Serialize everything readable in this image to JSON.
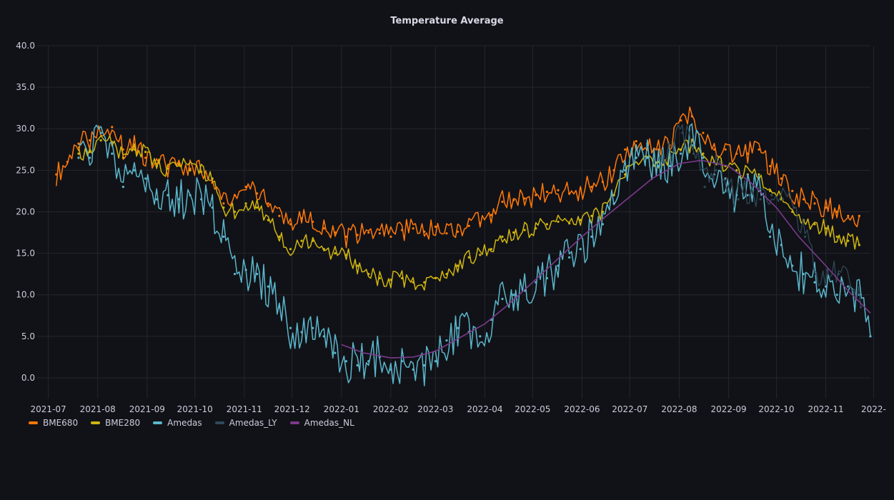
{
  "panel": {
    "title": "Temperature Average"
  },
  "chart_data": {
    "type": "line",
    "title": "Temperature Average",
    "ylim": [
      -2.5,
      40
    ],
    "yticks": [
      "40.0",
      "35.0",
      "30.0",
      "25.0",
      "20.0",
      "15.0",
      "10.0",
      "5.0",
      "0.0"
    ],
    "ytick_values": [
      40,
      35,
      30,
      25,
      20,
      15,
      10,
      5,
      0
    ],
    "xlim": [
      "2021-06-24",
      "2022-11-29"
    ],
    "xticks": [
      "2021-07",
      "2021-08",
      "2021-09",
      "2021-10",
      "2021-11",
      "2021-12",
      "2022-01",
      "2022-02",
      "2022-03",
      "2022-04",
      "2022-05",
      "2022-06",
      "2022-07",
      "2022-08",
      "2022-09",
      "2022-10",
      "2022-11",
      "2022-"
    ],
    "xtick_dates": [
      "2021-07-01",
      "2021-08-01",
      "2021-09-01",
      "2021-10-01",
      "2021-11-01",
      "2021-12-01",
      "2022-01-01",
      "2022-02-01",
      "2022-03-01",
      "2022-04-01",
      "2022-05-01",
      "2022-06-01",
      "2022-07-01",
      "2022-08-01",
      "2022-09-01",
      "2022-10-01",
      "2022-11-01",
      "2022-12-01"
    ],
    "grid": true,
    "legend_position": "bottom-left",
    "series": [
      {
        "name": "BME680",
        "color": "#ff780a",
        "x": [
          "2021-07-06",
          "2021-07-13",
          "2021-07-20",
          "2021-07-27",
          "2021-08-03",
          "2021-08-10",
          "2021-08-17",
          "2021-08-24",
          "2021-08-31",
          "2021-09-07",
          "2021-09-14",
          "2021-09-21",
          "2021-09-28",
          "2021-10-05",
          "2021-10-12",
          "2021-10-19",
          "2021-10-26",
          "2021-11-02",
          "2021-11-09",
          "2021-11-16",
          "2021-11-23",
          "2021-11-30",
          "2021-12-07",
          "2021-12-14",
          "2021-12-21",
          "2021-12-28",
          "2022-01-04",
          "2022-01-11",
          "2022-01-18",
          "2022-01-25",
          "2022-02-01",
          "2022-02-08",
          "2022-02-15",
          "2022-02-22",
          "2022-03-01",
          "2022-03-08",
          "2022-03-15",
          "2022-03-22",
          "2022-03-29",
          "2022-04-05",
          "2022-04-12",
          "2022-04-19",
          "2022-04-26",
          "2022-05-03",
          "2022-05-10",
          "2022-05-17",
          "2022-05-24",
          "2022-05-31",
          "2022-06-07",
          "2022-06-14",
          "2022-06-21",
          "2022-06-28",
          "2022-07-05",
          "2022-07-12",
          "2022-07-19",
          "2022-07-26",
          "2022-08-02",
          "2022-08-09",
          "2022-08-16",
          "2022-08-23",
          "2022-08-30",
          "2022-09-06",
          "2022-09-13",
          "2022-09-20",
          "2022-09-27",
          "2022-10-04",
          "2022-10-11",
          "2022-10-18",
          "2022-10-25",
          "2022-11-01",
          "2022-11-08",
          "2022-11-15",
          "2022-11-22"
        ],
        "values": [
          24.5,
          26.0,
          28.2,
          28.6,
          29.5,
          30.2,
          27.5,
          27.8,
          26.5,
          25.8,
          25.5,
          25.6,
          25.2,
          24.8,
          23.5,
          21.0,
          22.0,
          23.0,
          22.2,
          21.0,
          19.5,
          18.5,
          19.2,
          18.8,
          18.0,
          17.5,
          17.0,
          17.2,
          17.5,
          17.4,
          17.0,
          17.8,
          18.0,
          17.6,
          18.2,
          17.4,
          17.6,
          18.3,
          18.6,
          19.6,
          21.2,
          21.4,
          21.6,
          22.0,
          22.4,
          22.6,
          22.2,
          22.8,
          23.0,
          23.6,
          25.0,
          27.5,
          28.5,
          28.2,
          27.5,
          28.0,
          31.0,
          31.5,
          29.5,
          27.5,
          27.5,
          27.0,
          27.0,
          27.5,
          25.5,
          24.0,
          22.5,
          21.5,
          21.0,
          20.5,
          20.0,
          19.5,
          19.5
        ]
      },
      {
        "name": "BME280",
        "color": "#cfb50e",
        "x": [
          "2021-07-20",
          "2021-07-27",
          "2021-08-03",
          "2021-08-10",
          "2021-08-17",
          "2021-08-24",
          "2021-08-31",
          "2021-09-07",
          "2021-09-14",
          "2021-09-21",
          "2021-09-28",
          "2021-10-05",
          "2021-10-12",
          "2021-10-19",
          "2021-10-26",
          "2021-11-02",
          "2021-11-09",
          "2021-11-16",
          "2021-11-23",
          "2021-11-30",
          "2021-12-07",
          "2021-12-14",
          "2021-12-21",
          "2021-12-28",
          "2022-01-04",
          "2022-01-11",
          "2022-01-18",
          "2022-01-25",
          "2022-02-01",
          "2022-02-08",
          "2022-02-15",
          "2022-02-22",
          "2022-03-01",
          "2022-03-08",
          "2022-03-15",
          "2022-03-22",
          "2022-03-29",
          "2022-04-05",
          "2022-04-12",
          "2022-04-19",
          "2022-04-26",
          "2022-05-03",
          "2022-05-10",
          "2022-05-17",
          "2022-05-24",
          "2022-05-31",
          "2022-06-07",
          "2022-06-14",
          "2022-06-21",
          "2022-06-28",
          "2022-07-05",
          "2022-07-12",
          "2022-07-19",
          "2022-07-26",
          "2022-08-02",
          "2022-08-09",
          "2022-08-16",
          "2022-08-23",
          "2022-08-30",
          "2022-09-06",
          "2022-09-13",
          "2022-09-20",
          "2022-09-27",
          "2022-10-04",
          "2022-10-11",
          "2022-10-18",
          "2022-10-25",
          "2022-11-01",
          "2022-11-08",
          "2022-11-15",
          "2022-11-22"
        ],
        "values": [
          27.0,
          27.2,
          28.6,
          28.4,
          26.5,
          27.5,
          27.2,
          25.5,
          25.2,
          25.8,
          25.0,
          24.8,
          24.0,
          20.5,
          20.0,
          21.0,
          20.5,
          19.0,
          17.0,
          15.5,
          16.5,
          16.5,
          15.5,
          15.0,
          14.8,
          13.5,
          12.5,
          12.0,
          11.8,
          12.0,
          11.5,
          11.5,
          12.0,
          12.5,
          13.5,
          14.5,
          14.8,
          15.5,
          17.0,
          17.5,
          17.8,
          18.0,
          18.5,
          18.8,
          18.6,
          19.0,
          19.5,
          20.0,
          22.0,
          24.5,
          26.5,
          26.5,
          26.0,
          26.5,
          27.5,
          28.0,
          27.0,
          26.0,
          25.5,
          25.0,
          24.5,
          24.5,
          22.5,
          21.5,
          20.0,
          19.0,
          18.5,
          18.0,
          17.0,
          16.5,
          16.0
        ]
      },
      {
        "name": "Amedas",
        "color": "#5ab6cc",
        "x": [
          "2021-07-20",
          "2021-07-27",
          "2021-08-03",
          "2021-08-10",
          "2021-08-17",
          "2021-08-24",
          "2021-08-31",
          "2021-09-07",
          "2021-09-14",
          "2021-09-21",
          "2021-09-28",
          "2021-10-05",
          "2021-10-12",
          "2021-10-19",
          "2021-10-26",
          "2021-11-02",
          "2021-11-09",
          "2021-11-16",
          "2021-11-23",
          "2021-11-30",
          "2021-12-07",
          "2021-12-14",
          "2021-12-21",
          "2021-12-28",
          "2022-01-04",
          "2022-01-11",
          "2022-01-18",
          "2022-01-25",
          "2022-02-01",
          "2022-02-08",
          "2022-02-15",
          "2022-02-22",
          "2022-03-01",
          "2022-03-08",
          "2022-03-15",
          "2022-03-22",
          "2022-03-29",
          "2022-04-05",
          "2022-04-12",
          "2022-04-19",
          "2022-04-26",
          "2022-05-03",
          "2022-05-10",
          "2022-05-17",
          "2022-05-24",
          "2022-05-31",
          "2022-06-07",
          "2022-06-14",
          "2022-06-21",
          "2022-06-28",
          "2022-07-05",
          "2022-07-12",
          "2022-07-19",
          "2022-07-26",
          "2022-08-02",
          "2022-08-09",
          "2022-08-16",
          "2022-08-23",
          "2022-08-30",
          "2022-09-06",
          "2022-09-13",
          "2022-09-20",
          "2022-09-27",
          "2022-10-04",
          "2022-10-11",
          "2022-10-18",
          "2022-10-25",
          "2022-11-01",
          "2022-11-08",
          "2022-11-15",
          "2022-11-22",
          "2022-11-29"
        ],
        "values": [
          26.5,
          26.5,
          29.5,
          27.0,
          23.0,
          25.0,
          24.0,
          21.5,
          22.0,
          21.5,
          22.0,
          21.5,
          20.5,
          17.0,
          12.5,
          13.0,
          12.5,
          11.0,
          8.5,
          6.0,
          5.5,
          6.0,
          5.0,
          3.0,
          2.0,
          1.5,
          2.0,
          2.5,
          1.0,
          2.0,
          1.0,
          1.5,
          2.0,
          4.5,
          6.0,
          5.5,
          5.0,
          7.0,
          9.5,
          10.0,
          10.5,
          11.5,
          12.0,
          13.5,
          14.5,
          15.5,
          17.0,
          18.5,
          21.0,
          25.0,
          26.5,
          26.5,
          25.5,
          25.5,
          27.0,
          28.0,
          26.5,
          24.5,
          24.0,
          22.0,
          22.0,
          22.5,
          17.0,
          16.0,
          13.5,
          12.5,
          11.5,
          11.0,
          10.0,
          11.0,
          10.0,
          5.0
        ]
      },
      {
        "name": "Amedas_LY",
        "color": "#2f4b5a",
        "x": [
          "2022-07-20",
          "2022-07-27",
          "2022-08-03",
          "2022-08-10",
          "2022-08-17",
          "2022-08-24",
          "2022-08-31",
          "2022-09-07",
          "2022-09-14",
          "2022-09-21",
          "2022-09-28",
          "2022-10-05",
          "2022-10-12",
          "2022-10-19",
          "2022-10-26",
          "2022-11-02",
          "2022-11-09",
          "2022-11-16",
          "2022-11-23"
        ],
        "values": [
          26.5,
          26.5,
          29.5,
          27.0,
          23.0,
          25.0,
          24.0,
          21.5,
          22.0,
          21.5,
          22.0,
          21.5,
          20.5,
          17.0,
          12.5,
          13.0,
          12.5,
          11.0,
          8.5
        ]
      },
      {
        "name": "Amedas_NL",
        "color": "#7b3a8c",
        "x": [
          "2022-01-01",
          "2022-01-15",
          "2022-02-01",
          "2022-02-15",
          "2022-03-01",
          "2022-03-15",
          "2022-04-01",
          "2022-04-15",
          "2022-05-01",
          "2022-05-15",
          "2022-06-01",
          "2022-06-15",
          "2022-07-01",
          "2022-07-15",
          "2022-08-01",
          "2022-08-15",
          "2022-09-01",
          "2022-09-15",
          "2022-10-01",
          "2022-10-15",
          "2022-11-01",
          "2022-11-15",
          "2022-11-29"
        ],
        "values": [
          4.0,
          3.0,
          2.4,
          2.5,
          3.2,
          4.7,
          6.5,
          8.7,
          11.5,
          14.0,
          17.0,
          19.3,
          21.8,
          24.0,
          25.8,
          26.2,
          25.5,
          23.5,
          20.5,
          17.0,
          13.5,
          10.5,
          7.8
        ]
      }
    ]
  }
}
